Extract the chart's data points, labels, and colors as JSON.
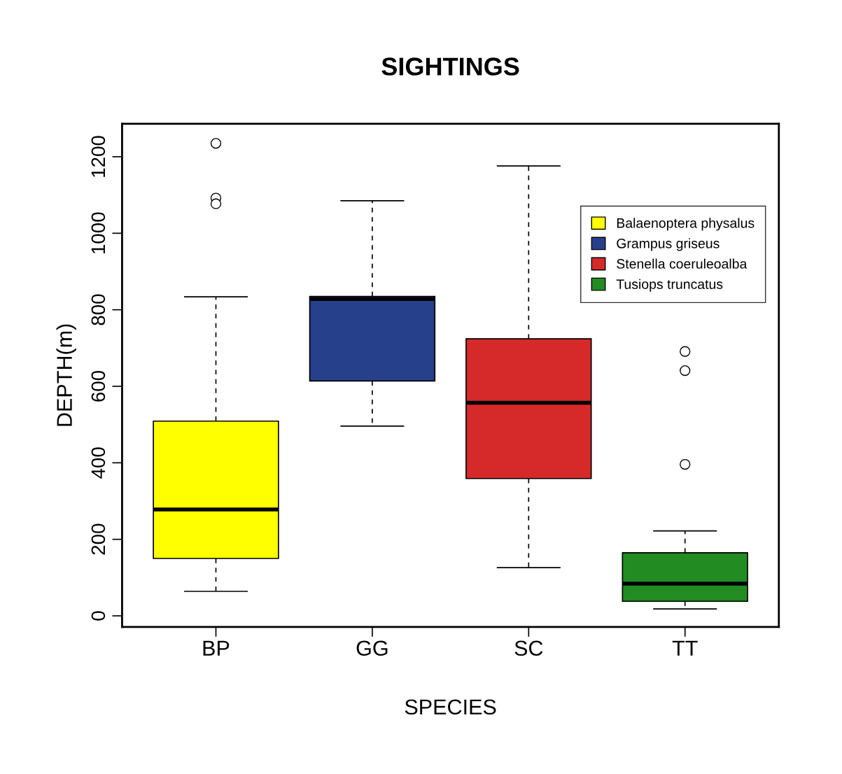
{
  "chart_data": {
    "type": "box",
    "title": "SIGHTINGS",
    "xlabel": "SPECIES",
    "ylabel": "DEPTH(m)",
    "categories": [
      "BP",
      "GG",
      "SC",
      "TT"
    ],
    "series": [
      {
        "name": "Balaenoptera physalus",
        "color": "#ffff00",
        "boxes": [
          {
            "low": 64,
            "q1": 150,
            "median": 278,
            "q3": 509,
            "high": 834,
            "outliers": [
              1235,
              1092,
              1077
            ]
          },
          null,
          null,
          null
        ]
      },
      {
        "name": "Grampus griseus",
        "color": "#27408b",
        "boxes": [
          null,
          {
            "low": 496,
            "q1": 614,
            "median": 828,
            "q3": 835,
            "high": 1085
          },
          null,
          null
        ]
      },
      {
        "name": "Stenella coeruleoalba",
        "color": "#d62a2a",
        "boxes": [
          null,
          null,
          {
            "low": 126,
            "q1": 359,
            "median": 557,
            "q3": 724,
            "high": 1176
          },
          null
        ]
      },
      {
        "name": "Tusiops truncatus",
        "color": "#228b22",
        "boxes": [
          null,
          null,
          null,
          {
            "low": 18,
            "q1": 38,
            "median": 84,
            "q3": 165,
            "high": 222,
            "outliers": [
              396,
              641,
              691
            ]
          }
        ]
      }
    ],
    "ylim": [
      -29,
      1286
    ],
    "yticks": [
      0,
      200,
      400,
      600,
      800,
      1000,
      1200
    ],
    "grid": false,
    "legend": "top right"
  }
}
